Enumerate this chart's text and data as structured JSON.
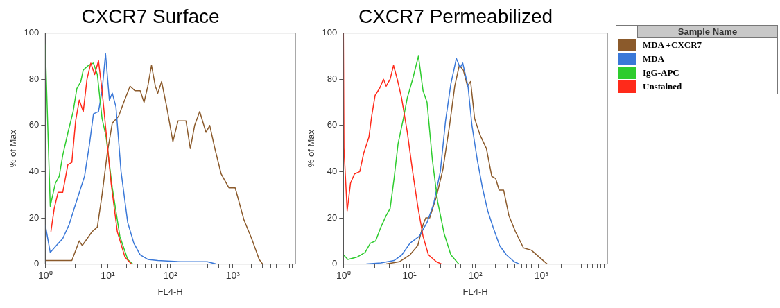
{
  "chart_data": [
    {
      "type": "line",
      "title": "CXCR7 Surface",
      "xlabel": "FL4-H",
      "ylabel": "% of Max",
      "log": "x",
      "grid": false,
      "legend": false,
      "marker": "none",
      "xlim": [
        1,
        10000
      ],
      "ylim": [
        0,
        100
      ],
      "yticks": [
        0,
        20,
        40,
        60,
        80,
        100
      ],
      "xticks": [
        {
          "value": 1,
          "label": "10⁰"
        },
        {
          "value": 2,
          "label": null
        },
        {
          "value": 3,
          "label": null
        },
        {
          "value": 4,
          "label": null
        },
        {
          "value": 5,
          "label": null
        },
        {
          "value": 6,
          "label": null
        },
        {
          "value": 7,
          "label": null
        },
        {
          "value": 8,
          "label": null
        },
        {
          "value": 9,
          "label": null
        },
        {
          "value": 10,
          "label": "10¹"
        },
        {
          "value": 20,
          "label": null
        },
        {
          "value": 30,
          "label": null
        },
        {
          "value": 40,
          "label": null
        },
        {
          "value": 50,
          "label": null
        },
        {
          "value": 60,
          "label": null
        },
        {
          "value": 70,
          "label": null
        },
        {
          "value": 80,
          "label": null
        },
        {
          "value": 90,
          "label": null
        },
        {
          "value": 100,
          "label": "10²"
        },
        {
          "value": 200,
          "label": null
        },
        {
          "value": 300,
          "label": null
        },
        {
          "value": 400,
          "label": null
        },
        {
          "value": 500,
          "label": null
        },
        {
          "value": 600,
          "label": null
        },
        {
          "value": 700,
          "label": null
        },
        {
          "value": 800,
          "label": null
        },
        {
          "value": 900,
          "label": null
        },
        {
          "value": 1000,
          "label": "10³"
        },
        {
          "value": 2000,
          "label": null
        },
        {
          "value": 3000,
          "label": null
        },
        {
          "value": 4000,
          "label": null
        },
        {
          "value": 5000,
          "label": null
        },
        {
          "value": 6000,
          "label": null
        },
        {
          "value": 7000,
          "label": null
        },
        {
          "value": 8000,
          "label": null
        },
        {
          "value": 9000,
          "label": null
        }
      ],
      "series": [
        {
          "color": "#8b5a2b",
          "x": [
            1,
            2.66,
            3.5,
            3.9,
            5.6,
            6.8,
            8.1,
            9.8,
            11.8,
            14.9,
            18,
            22.7,
            27.3,
            33,
            38,
            43.7,
            50,
            57.6,
            63,
            72.6,
            87.6,
            110,
            133,
            162,
            178,
            209,
            245,
            295,
            372,
            427,
            516,
            650,
            865,
            1090,
            1510,
            2000,
            2640,
            3000
          ],
          "values": [
            1.5,
            1.5,
            10,
            8,
            14,
            16,
            30,
            48,
            61,
            64,
            70,
            77,
            75,
            75,
            70,
            77,
            86,
            77,
            74,
            79,
            68,
            53,
            62,
            62,
            62,
            50,
            60,
            66,
            57,
            60,
            50,
            39,
            33,
            33,
            19,
            11,
            2,
            0
          ]
        },
        {
          "color": "#3a78d8",
          "x": [
            1,
            1.2,
            1.5,
            1.9,
            2.4,
            3.06,
            3.7,
            4.25,
            5.1,
            5.9,
            7.1,
            8.1,
            9.2,
            10.6,
            11.8,
            13.5,
            16.3,
            20.8,
            26.1,
            33,
            43.7,
            63,
            147,
            390,
            540
          ],
          "values": [
            17,
            5,
            8,
            11,
            17,
            26,
            33,
            38,
            52,
            65,
            66,
            75,
            91,
            71,
            74,
            68,
            40,
            18,
            9,
            4,
            2,
            1.5,
            1,
            1,
            0
          ]
        },
        {
          "color": "#2ecc2e",
          "x": [
            1,
            1.2,
            1.45,
            1.67,
            1.9,
            2.31,
            2.79,
            3.2,
            3.7,
            4.05,
            4.9,
            5.9,
            6.8,
            8.1,
            9.4,
            11.8,
            15.6,
            20.8,
            25
          ],
          "values": [
            95,
            25,
            35,
            38,
            47,
            57,
            66,
            76,
            79,
            84,
            86,
            87,
            82,
            63,
            55,
            33,
            12,
            2,
            0
          ]
        },
        {
          "color": "#ff2a1a",
          "x": [
            1.23,
            1.39,
            1.6,
            1.9,
            2.3,
            2.66,
            3.06,
            3.5,
            4.05,
            4.65,
            5.35,
            6.15,
            7.1,
            8.1,
            9.4,
            11.3,
            14.2,
            18.8,
            23.8
          ],
          "values": [
            14,
            24,
            31,
            31,
            43,
            44,
            62,
            71,
            66,
            80,
            87,
            82,
            88,
            75,
            57,
            35,
            14,
            3,
            0
          ]
        }
      ]
    },
    {
      "type": "line",
      "title": "CXCR7 Permeabilized",
      "xlabel": "FL4-H",
      "ylabel": "% of Max",
      "log": "x",
      "grid": false,
      "legend": "right",
      "legend_title": "Sample Name",
      "marker": "none",
      "xlim": [
        1,
        10000
      ],
      "ylim": [
        0,
        100
      ],
      "yticks": [
        0,
        20,
        40,
        60,
        80,
        100
      ],
      "xticks": [
        {
          "value": 1,
          "label": "10⁰"
        },
        {
          "value": 2,
          "label": null
        },
        {
          "value": 3,
          "label": null
        },
        {
          "value": 4,
          "label": null
        },
        {
          "value": 5,
          "label": null
        },
        {
          "value": 6,
          "label": null
        },
        {
          "value": 7,
          "label": null
        },
        {
          "value": 8,
          "label": null
        },
        {
          "value": 9,
          "label": null
        },
        {
          "value": 10,
          "label": "10¹"
        },
        {
          "value": 20,
          "label": null
        },
        {
          "value": 30,
          "label": null
        },
        {
          "value": 40,
          "label": null
        },
        {
          "value": 50,
          "label": null
        },
        {
          "value": 60,
          "label": null
        },
        {
          "value": 70,
          "label": null
        },
        {
          "value": 80,
          "label": null
        },
        {
          "value": 90,
          "label": null
        },
        {
          "value": 100,
          "label": "10²"
        },
        {
          "value": 200,
          "label": null
        },
        {
          "value": 300,
          "label": null
        },
        {
          "value": 400,
          "label": null
        },
        {
          "value": 500,
          "label": null
        },
        {
          "value": 600,
          "label": null
        },
        {
          "value": 700,
          "label": null
        },
        {
          "value": 800,
          "label": null
        },
        {
          "value": 900,
          "label": null
        },
        {
          "value": 1000,
          "label": "10³"
        },
        {
          "value": 2000,
          "label": null
        },
        {
          "value": 3000,
          "label": null
        },
        {
          "value": 4000,
          "label": null
        },
        {
          "value": 5000,
          "label": null
        },
        {
          "value": 6000,
          "label": null
        },
        {
          "value": 7000,
          "label": null
        },
        {
          "value": 8000,
          "label": null
        },
        {
          "value": 9000,
          "label": null
        }
      ],
      "series": [
        {
          "name": "MDA +CXCR7",
          "color": "#8b5a2b",
          "x": [
            4.45,
            7.05,
            10.2,
            13.4,
            16.1,
            17.7,
            20.3,
            25.6,
            32.2,
            40.6,
            48.7,
            57,
            65.5,
            75.9,
            84.7,
            97.3,
            117,
            147,
            177,
            203,
            229,
            268,
            322,
            405,
            535,
            705,
            929,
            1225
          ],
          "values": [
            0,
            1,
            4,
            8,
            17,
            20,
            20,
            29,
            41,
            60,
            77,
            86,
            84,
            77,
            79,
            63,
            56,
            50,
            38,
            37,
            32,
            32,
            21,
            14,
            7,
            6,
            3,
            0
          ]
        },
        {
          "name": "MDA",
          "color": "#3a78d8",
          "x": [
            2.23,
            3.7,
            5.86,
            7.7,
            10.2,
            14.1,
            18.5,
            23.3,
            29.4,
            35.3,
            42.5,
            51.5,
            58.6,
            64.3,
            77.3,
            88.7,
            107,
            128,
            154,
            185,
            233,
            294,
            387,
            466
          ],
          "values": [
            0,
            0.5,
            1.5,
            4,
            9,
            12,
            18,
            26,
            40,
            62,
            78,
            89,
            85,
            87,
            77,
            60,
            45,
            33,
            23,
            16,
            8,
            4,
            1,
            0
          ]
        },
        {
          "name": "IgG-APC",
          "color": "#2ecc2e",
          "x": [
            1,
            1.17,
            1.61,
            2.13,
            2.56,
            3.08,
            3.7,
            4.45,
            5.1,
            5.86,
            6.73,
            8.1,
            9.3,
            11.2,
            13.7,
            16.1,
            18.5,
            22.3,
            26.8,
            33.7,
            42.5,
            56
          ],
          "values": [
            4,
            2,
            3,
            5,
            9,
            10,
            16,
            21,
            24,
            37,
            52,
            63,
            72,
            80,
            90,
            75,
            70,
            45,
            27,
            13,
            4,
            0
          ]
        },
        {
          "name": "Unstained",
          "color": "#ff2a1a",
          "x": [
            1,
            1.02,
            1.14,
            1.28,
            1.47,
            1.77,
            2.03,
            2.44,
            2.68,
            3.02,
            3.53,
            4.05,
            4.45,
            5.1,
            5.75,
            6.55,
            7.6,
            9.3,
            11.2,
            13.4,
            16.1,
            19.4,
            25.6,
            30.8
          ],
          "values": [
            100,
            50,
            23,
            35,
            39,
            40,
            48,
            55,
            64,
            73,
            76,
            80,
            77,
            80,
            86,
            80,
            72,
            57,
            40,
            25,
            12,
            4,
            1,
            0
          ]
        }
      ]
    }
  ]
}
